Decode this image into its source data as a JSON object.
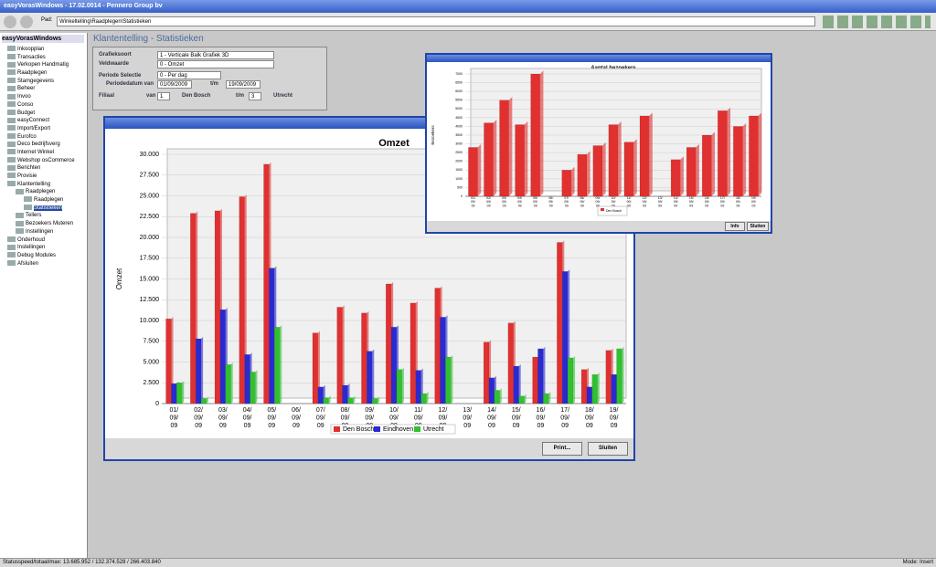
{
  "window": {
    "title": "easyVorasWindows - 17.02.0014 - Pennero Group bv",
    "path_label": "Pad:",
    "path": "Winkeltelling\\Raadplegen\\Statistieken"
  },
  "sidebar": {
    "header": "easyVorasWindows",
    "items": [
      {
        "label": "Inkoopplan"
      },
      {
        "label": "Transacties"
      },
      {
        "label": "Verkopen Handmatig"
      },
      {
        "label": "Raadplegen"
      },
      {
        "label": "Stamgegevens"
      },
      {
        "label": "Beheer"
      },
      {
        "label": "Invoo"
      },
      {
        "label": "Conso"
      },
      {
        "label": "Budget"
      },
      {
        "label": "easyConnect"
      },
      {
        "label": "Import/Export"
      },
      {
        "label": "Eurofco"
      },
      {
        "label": "Deco bedrijfsverg"
      },
      {
        "label": "Internet Winkel"
      },
      {
        "label": "Webshop osCommerce"
      },
      {
        "label": "Berichten"
      },
      {
        "label": "Provisie"
      },
      {
        "label": "Klantentelling",
        "children": [
          {
            "label": "Raadplegen",
            "children": [
              {
                "label": "Raadplegen"
              },
              {
                "label": "Statistieken"
              }
            ]
          },
          {
            "label": "Tellers"
          },
          {
            "label": "Bezoekers Muteren"
          },
          {
            "label": "Instellingen"
          }
        ]
      },
      {
        "label": "Onderhoud"
      },
      {
        "label": "Instellingen"
      },
      {
        "label": "Debug Modules"
      },
      {
        "label": "Afsluiten"
      }
    ]
  },
  "heading": "Klantentelling - Statistieken",
  "form": {
    "grafieksoort_label": "Grafieksoort",
    "grafieksoort": "1 - Verticale Balk Grafiek 3D",
    "veldwaarde_label": "Veldwaarde",
    "veldwaarde": "0 - Omzet",
    "periode_label": "Periode Selectie",
    "periode": "0 - Per dag",
    "datum_label": "Periodedatum van",
    "datum_van": "01/09/2009",
    "tm_label": "t/m",
    "datum_tm": "19/09/2009",
    "filiaal_label": "Filiaal",
    "van_label": "van",
    "filiaal_van": "1",
    "filiaal_van_naam": "Den Bosch",
    "filiaal_tm": "3",
    "filiaal_tm_naam": "Utrecht"
  },
  "buttons": {
    "print": "Print...",
    "sluiten": "Sluiten",
    "info": "Info",
    "sluiten2": "Sluiten"
  },
  "status": {
    "left": "Statusspeed/totaal/max: 13.685.952 / 132.374.528 / 266.403.840",
    "right": "Mode: Insert"
  },
  "chart_data": [
    {
      "type": "bar",
      "title": "Omzet",
      "y_label": "Omzet",
      "categories": [
        "01/09/09",
        "02/09/09",
        "03/09/09",
        "04/09/09",
        "05/09/09",
        "06/09/09",
        "07/09/09",
        "08/09/09",
        "09/09/09",
        "10/09/09",
        "11/09/09",
        "12/09/09",
        "13/09/09",
        "14/09/09",
        "15/09/09",
        "16/09/09",
        "17/09/09",
        "18/09/09",
        "19/09/09"
      ],
      "series": [
        {
          "name": "Den Bosch",
          "color": "#e03030",
          "values": [
            10200,
            22900,
            23200,
            24900,
            28800,
            0,
            8500,
            11600,
            10900,
            14400,
            12100,
            13900,
            0,
            7400,
            9700,
            5600,
            19400,
            4100,
            6400
          ]
        },
        {
          "name": "Eindhoven",
          "color": "#2a2ad0",
          "values": [
            2400,
            7800,
            11300,
            5900,
            16300,
            0,
            2000,
            2200,
            6300,
            9200,
            4000,
            10400,
            0,
            3100,
            4500,
            6600,
            15900,
            2000,
            3500
          ]
        },
        {
          "name": "Utrecht",
          "color": "#30c030",
          "values": [
            2500,
            600,
            4700,
            3800,
            9200,
            0,
            700,
            700,
            600,
            4100,
            1200,
            5600,
            0,
            1600,
            900,
            1200,
            5500,
            3500,
            6600
          ]
        }
      ],
      "ylim": [
        0,
        30000
      ],
      "yticks": [
        0,
        {
          "value": 2500,
          "label": "2.500"
        },
        {
          "value": 5000,
          "label": "5.000"
        },
        {
          "value": 7500,
          "label": "7.500"
        },
        {
          "value": 10000,
          "label": "10.000"
        },
        {
          "value": 12500,
          "label": "12.500"
        },
        {
          "value": 15000,
          "label": "15.000"
        },
        {
          "value": 17500,
          "label": "17.500"
        },
        {
          "value": 20000,
          "label": "20.000"
        },
        {
          "value": 22500,
          "label": "22.500"
        },
        {
          "value": 25000,
          "label": "25.000"
        },
        {
          "value": 27500,
          "label": "27.500"
        },
        {
          "value": 30000,
          "label": "30.000"
        }
      ],
      "grid": true
    },
    {
      "type": "bar",
      "title": "Aantal bezoekers",
      "y_label": "Bezoekers",
      "categories": [
        "01/09/09",
        "02/09/09",
        "03/09/09",
        "04/09/09",
        "05/09/09",
        "06/09/09",
        "07/09/09",
        "08/09/09",
        "09/09/09",
        "10/09/09",
        "11/09/09",
        "12/09/09",
        "13/09/09",
        "14/09/09",
        "15/09/09",
        "16/09/09",
        "17/09/09",
        "18/09/09",
        "19/09/09"
      ],
      "series": [
        {
          "name": "Den Bosch",
          "color": "#e03030",
          "values": [
            2800,
            4200,
            5500,
            4100,
            7000,
            0,
            1500,
            2400,
            2900,
            4100,
            3100,
            4600,
            0,
            2100,
            2800,
            3500,
            4900,
            4000,
            4600
          ]
        }
      ],
      "ylim": [
        0,
        7000
      ],
      "yticks": [
        0,
        500,
        1000,
        1500,
        2000,
        2500,
        3000,
        3500,
        4000,
        4500,
        5000,
        5500,
        6000,
        6500,
        7000
      ],
      "grid": true
    }
  ]
}
